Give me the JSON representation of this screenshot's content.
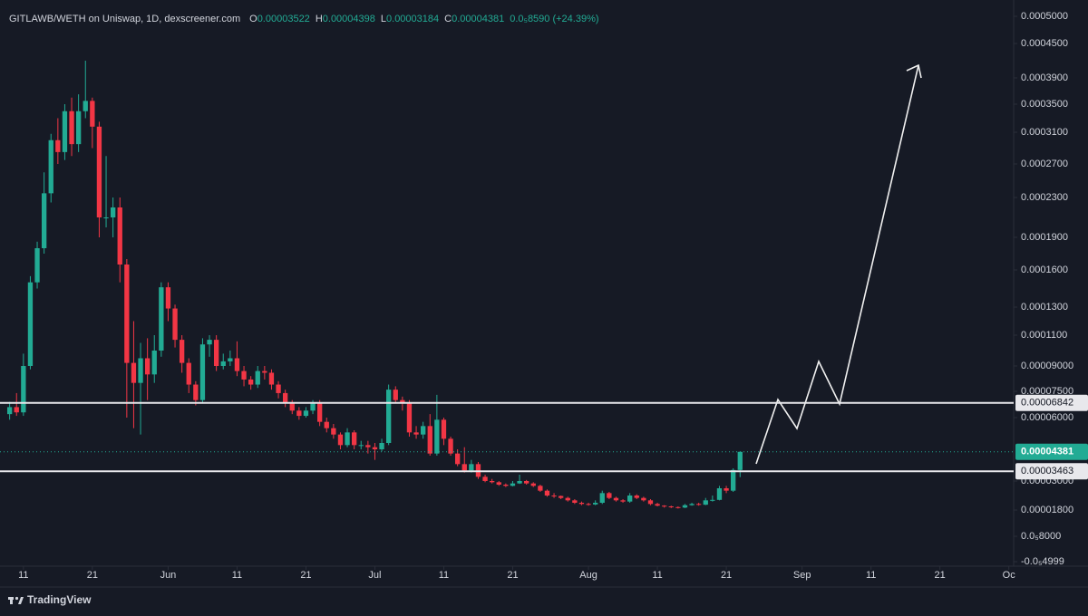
{
  "chart_data": {
    "type": "candlestick",
    "header": {
      "symbol": "GITLAWB/WETH on Uniswap, 1D, dexscreener.com",
      "ohlc": [
        {
          "key": "O",
          "value": "0.00003522"
        },
        {
          "key": "H",
          "value": "0.00004398"
        },
        {
          "key": "L",
          "value": "0.00003184"
        },
        {
          "key": "C",
          "value": "0.00004381"
        }
      ],
      "change": "0.0₅8590 (+24.39%)"
    },
    "up_color": "#22ab94",
    "down_color": "#f23645",
    "xlim": [
      -1.4,
      145.7
    ],
    "xticks": [
      {
        "value": 2,
        "label": "11"
      },
      {
        "value": 12,
        "label": "21"
      },
      {
        "value": 23,
        "label": "Jun"
      },
      {
        "value": 33,
        "label": "11"
      },
      {
        "value": 43,
        "label": "21"
      },
      {
        "value": 53,
        "label": "Jul"
      },
      {
        "value": 63,
        "label": "11"
      },
      {
        "value": 73,
        "label": "21"
      },
      {
        "value": 84,
        "label": "Aug"
      },
      {
        "value": 94,
        "label": "11"
      },
      {
        "value": 104,
        "label": "21"
      },
      {
        "value": 115,
        "label": "Sep"
      },
      {
        "value": 125,
        "label": "11"
      },
      {
        "value": 135,
        "label": "21"
      },
      {
        "value": 145,
        "label": "Oc"
      }
    ],
    "ylim": [
      -7.3e-06,
      0.00053
    ],
    "yticks": [
      {
        "value": 0.0005,
        "label": "0.0005000"
      },
      {
        "value": 0.00045,
        "label": "0.0004500"
      },
      {
        "value": 0.00039,
        "label": "0.0003900"
      },
      {
        "value": 0.00035,
        "label": "0.0003500"
      },
      {
        "value": 0.00031,
        "label": "0.0003100"
      },
      {
        "value": 0.00027,
        "label": "0.0002700"
      },
      {
        "value": 0.00023,
        "label": "0.0002300"
      },
      {
        "value": 0.00019,
        "label": "0.0001900"
      },
      {
        "value": 0.00016,
        "label": "0.0001600"
      },
      {
        "value": 0.00013,
        "label": "0.0001300"
      },
      {
        "value": 0.00011,
        "label": "0.0001100"
      },
      {
        "value": 9e-05,
        "label": "0.00009000"
      },
      {
        "value": 7.5e-05,
        "label": "0.00007500"
      },
      {
        "value": 6e-05,
        "label": "0.00006000"
      },
      {
        "value": 3e-05,
        "label": "0.00003000"
      },
      {
        "value": 1.8e-05,
        "label": "0.00001800"
      },
      {
        "value": 8e-06,
        "label": "0.0₅8000"
      },
      {
        "value": -4.999e-06,
        "label": "-0.0₅4999"
      }
    ],
    "levels": [
      {
        "value": 6.842e-05,
        "label": "0.00006842",
        "color": "#e8e8ec"
      },
      {
        "value": 3.463e-05,
        "label": "0.00003463",
        "color": "#e8e8ec"
      }
    ],
    "last_price": {
      "value": 4.381e-05,
      "label": "0.00004381",
      "color": "#22ab94"
    },
    "x": [
      0,
      1,
      2,
      3,
      4,
      5,
      6,
      7,
      8,
      9,
      10,
      11,
      12,
      13,
      14,
      15,
      16,
      17,
      18,
      19,
      20,
      21,
      22,
      23,
      24,
      25,
      26,
      27,
      28,
      29,
      30,
      31,
      32,
      33,
      34,
      35,
      36,
      37,
      38,
      39,
      40,
      41,
      42,
      43,
      44,
      45,
      46,
      47,
      48,
      49,
      50,
      51,
      52,
      53,
      54,
      55,
      56,
      57,
      58,
      59,
      60,
      61,
      62,
      63,
      64,
      65,
      66,
      67,
      68,
      69,
      70,
      71,
      72,
      73,
      74,
      75,
      76,
      77,
      78,
      79,
      80,
      81,
      82,
      83,
      84,
      85,
      86,
      87,
      88,
      89,
      90,
      91,
      92,
      93,
      94,
      95,
      96,
      97,
      98,
      99,
      100,
      101,
      102,
      103,
      104,
      105,
      106
    ],
    "candles": [
      [
        6.2e-05,
        6.9e-05,
        5.9e-05,
        6.6e-05
      ],
      [
        6.6e-05,
        7.4e-05,
        6.1e-05,
        6.3e-05
      ],
      [
        6.3e-05,
        9.8e-05,
        6.1e-05,
        9e-05
      ],
      [
        9e-05,
        0.000155,
        8.8e-05,
        0.00015
      ],
      [
        0.00015,
        0.000186,
        0.000145,
        0.00018
      ],
      [
        0.00018,
        0.00026,
        0.000175,
        0.000235
      ],
      [
        0.000235,
        0.000308,
        0.000225,
        0.0003
      ],
      [
        0.0003,
        0.00033,
        0.00027,
        0.000285
      ],
      [
        0.000285,
        0.00035,
        0.000275,
        0.00034
      ],
      [
        0.00034,
        0.00036,
        0.00028,
        0.000295
      ],
      [
        0.000295,
        0.000365,
        0.000285,
        0.00034
      ],
      [
        0.00034,
        0.00042,
        0.00033,
        0.000355
      ],
      [
        0.000355,
        0.00036,
        0.00029,
        0.000318
      ],
      [
        0.000318,
        0.000325,
        0.00019,
        0.00021
      ],
      [
        0.00021,
        0.00028,
        0.0002,
        0.00021
      ],
      [
        0.00021,
        0.00023,
        0.00019,
        0.00022
      ],
      [
        0.00022,
        0.00023,
        0.00015,
        0.000165
      ],
      [
        0.000165,
        0.00017,
        6e-05,
        9.2e-05
      ],
      [
        9.2e-05,
        0.00012,
        5.5e-05,
        8e-05
      ],
      [
        8e-05,
        0.000105,
        5.2e-05,
        9.5e-05
      ],
      [
        9.5e-05,
        0.000108,
        7e-05,
        8.5e-05
      ],
      [
        8.5e-05,
        0.00011,
        8e-05,
        0.0001
      ],
      [
        0.0001,
        0.00015,
        9.6e-05,
        0.000146
      ],
      [
        0.000146,
        0.00015,
        0.00012,
        0.000129
      ],
      [
        0.000129,
        0.000132,
        0.000102,
        0.000107
      ],
      [
        0.000107,
        0.00011,
        8.6e-05,
        9.2e-05
      ],
      [
        9.2e-05,
        9.5e-05,
        7.4e-05,
        7.9e-05
      ],
      [
        7.9e-05,
        8.1e-05,
        6.7e-05,
        7e-05
      ],
      [
        7e-05,
        0.000108,
        6.8e-05,
        0.000104
      ],
      [
        0.000104,
        0.00011,
        9.6e-05,
        0.000107
      ],
      [
        0.000107,
        0.00011,
        8.7e-05,
        9e-05
      ],
      [
        9e-05,
        9.8e-05,
        8.8e-05,
        9.3e-05
      ],
      [
        9.3e-05,
        0.0001,
        9e-05,
        9.5e-05
      ],
      [
        9.5e-05,
        0.000106,
        8.4e-05,
        8.7e-05
      ],
      [
        8.7e-05,
        9e-05,
        7.8e-05,
        8.2e-05
      ],
      [
        8.2e-05,
        8.4e-05,
        7.6e-05,
        7.9e-05
      ],
      [
        7.9e-05,
        9e-05,
        7.7e-05,
        8.7e-05
      ],
      [
        8.7e-05,
        9e-05,
        8.2e-05,
        8.6e-05
      ],
      [
        8.6e-05,
        8.8e-05,
        7.6e-05,
        7.9e-05
      ],
      [
        7.9e-05,
        8.1e-05,
        7.1e-05,
        7.4e-05
      ],
      [
        7.4e-05,
        7.6e-05,
        6.6e-05,
        6.8e-05
      ],
      [
        6.8e-05,
        7e-05,
        6.2e-05,
        6.4e-05
      ],
      [
        6.4e-05,
        6.6e-05,
        5.9e-05,
        6.1e-05
      ],
      [
        6.1e-05,
        6.6e-05,
        6e-05,
        6.4e-05
      ],
      [
        6.4e-05,
        7e-05,
        6.2e-05,
        6.8e-05
      ],
      [
        6.8e-05,
        7e-05,
        5.6e-05,
        5.8e-05
      ],
      [
        5.8e-05,
        6e-05,
        5.3e-05,
        5.5e-05
      ],
      [
        5.5e-05,
        5.7e-05,
        5e-05,
        5.2e-05
      ],
      [
        5.2e-05,
        5.3e-05,
        4.5e-05,
        4.7e-05
      ],
      [
        4.7e-05,
        5.5e-05,
        4.6e-05,
        5.3e-05
      ],
      [
        5.3e-05,
        5.4e-05,
        4.5e-05,
        4.7e-05
      ],
      [
        4.7e-05,
        4.9e-05,
        4.5e-05,
        4.7e-05
      ],
      [
        4.7e-05,
        4.9e-05,
        4.3e-05,
        4.6e-05
      ],
      [
        4.6e-05,
        4.8e-05,
        4e-05,
        4.5e-05
      ],
      [
        4.5e-05,
        5e-05,
        4.4e-05,
        4.8e-05
      ],
      [
        4.8e-05,
        7.9e-05,
        4.7e-05,
        7.6e-05
      ],
      [
        7.6e-05,
        7.8e-05,
        6.8e-05,
        7e-05
      ],
      [
        7e-05,
        7.2e-05,
        6.4e-05,
        6.8e-05
      ],
      [
        6.8e-05,
        7e-05,
        5.1e-05,
        5.3e-05
      ],
      [
        5.3e-05,
        5.6e-05,
        5e-05,
        5.2e-05
      ],
      [
        5.2e-05,
        5.8e-05,
        5e-05,
        5.6e-05
      ],
      [
        5.6e-05,
        6.2e-05,
        4.2e-05,
        4.3e-05
      ],
      [
        4.3e-05,
        7.3e-05,
        4.2e-05,
        5.9e-05
      ],
      [
        5.9e-05,
        6e-05,
        4.7e-05,
        5e-05
      ],
      [
        5e-05,
        5.1e-05,
        4.2e-05,
        4.3e-05
      ],
      [
        4.3e-05,
        4.5e-05,
        3.7e-05,
        3.8e-05
      ],
      [
        3.8e-05,
        4.6e-05,
        3.4e-05,
        3.5e-05
      ],
      [
        3.5e-05,
        4e-05,
        3.4e-05,
        3.8e-05
      ],
      [
        3.8e-05,
        3.9e-05,
        3.1e-05,
        3.2e-05
      ],
      [
        3.2e-05,
        3.3e-05,
        2.95e-05,
        3e-05
      ],
      [
        3e-05,
        3.1e-05,
        2.9e-05,
        2.95e-05
      ],
      [
        2.95e-05,
        3e-05,
        2.8e-05,
        2.85e-05
      ],
      [
        2.85e-05,
        2.9e-05,
        2.75e-05,
        2.8e-05
      ],
      [
        2.8e-05,
        3e-05,
        2.78e-05,
        2.9e-05
      ],
      [
        2.9e-05,
        3.3e-05,
        2.88e-05,
        3e-05
      ],
      [
        3e-05,
        3.05e-05,
        2.85e-05,
        2.9e-05
      ],
      [
        2.9e-05,
        2.95e-05,
        2.75e-05,
        2.8e-05
      ],
      [
        2.8e-05,
        2.85e-05,
        2.55e-05,
        2.6e-05
      ],
      [
        2.6e-05,
        2.65e-05,
        2.35e-05,
        2.4e-05
      ],
      [
        2.4e-05,
        2.5e-05,
        2.3e-05,
        2.38e-05
      ],
      [
        2.38e-05,
        2.4e-05,
        2.25e-05,
        2.3e-05
      ],
      [
        2.3e-05,
        2.35e-05,
        2.15e-05,
        2.2e-05
      ],
      [
        2.2e-05,
        2.25e-05,
        2.05e-05,
        2.1e-05
      ],
      [
        2.1e-05,
        2.15e-05,
        2e-05,
        2.05e-05
      ],
      [
        2.05e-05,
        2.1e-05,
        1.98e-05,
        2.03e-05
      ],
      [
        2.03e-05,
        2.2e-05,
        2e-05,
        2.1e-05
      ],
      [
        2.1e-05,
        2.6e-05,
        2.05e-05,
        2.5e-05
      ],
      [
        2.5e-05,
        2.55e-05,
        2.25e-05,
        2.3e-05
      ],
      [
        2.3e-05,
        2.35e-05,
        2.15e-05,
        2.2e-05
      ],
      [
        2.2e-05,
        2.25e-05,
        2.1e-05,
        2.15e-05
      ],
      [
        2.15e-05,
        2.5e-05,
        2.1e-05,
        2.4e-05
      ],
      [
        2.4e-05,
        2.45e-05,
        2.25e-05,
        2.3e-05
      ],
      [
        2.3e-05,
        2.35e-05,
        2.15e-05,
        2.2e-05
      ],
      [
        2.2e-05,
        2.25e-05,
        2e-05,
        2.05e-05
      ],
      [
        2.05e-05,
        2.1e-05,
        1.95e-05,
        1.98e-05
      ],
      [
        1.98e-05,
        2e-05,
        1.9e-05,
        1.95e-05
      ],
      [
        1.95e-05,
        1.98e-05,
        1.88e-05,
        1.92e-05
      ],
      [
        1.92e-05,
        1.95e-05,
        1.86e-05,
        1.9e-05
      ],
      [
        1.9e-05,
        2.05e-05,
        1.88e-05,
        2e-05
      ],
      [
        2e-05,
        2.1e-05,
        1.98e-05,
        2.05e-05
      ],
      [
        2.05e-05,
        2.1e-05,
        1.98e-05,
        2.02e-05
      ],
      [
        2.02e-05,
        2.3e-05,
        2e-05,
        2.2e-05
      ],
      [
        2.2e-05,
        2.4e-05,
        2.15e-05,
        2.22e-05
      ],
      [
        2.22e-05,
        2.8e-05,
        2.2e-05,
        2.7e-05
      ],
      [
        2.7e-05,
        2.8e-05,
        2.5e-05,
        2.6e-05
      ],
      [
        2.6e-05,
        3.6e-05,
        2.55e-05,
        3.522e-05
      ],
      [
        3.522e-05,
        4.398e-05,
        3.184e-05,
        4.381e-05
      ]
    ],
    "watermark": "TradingView"
  }
}
